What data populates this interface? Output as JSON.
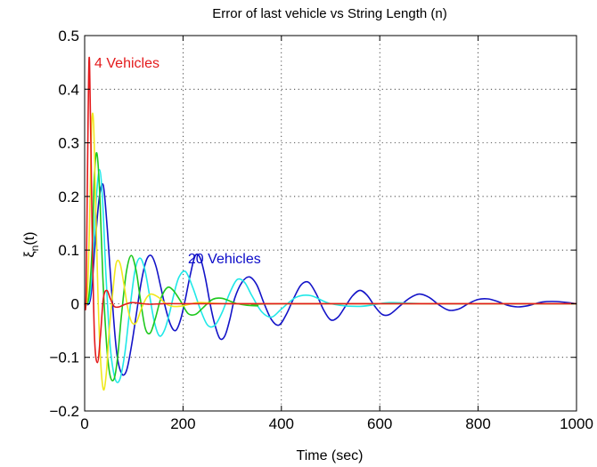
{
  "chart_data": {
    "type": "line",
    "title": "Error of last vehicle vs String Length (n)",
    "xlabel": "Time (sec)",
    "ylabel_base": "ξ",
    "ylabel_sub": "n",
    "ylabel_tail": "(t)",
    "xlim": [
      0,
      1000
    ],
    "ylim": [
      -0.2,
      0.5
    ],
    "xticks": [
      0,
      200,
      400,
      600,
      800,
      1000
    ],
    "xtick_labels": [
      "0",
      "200",
      "400",
      "600",
      "800",
      "1000"
    ],
    "yticks": [
      -0.2,
      -0.1,
      0,
      0.1,
      0.2,
      0.3,
      0.4,
      0.5
    ],
    "ytick_labels": [
      "−0.2",
      "−0.1",
      "0",
      "0.1",
      "0.2",
      "0.3",
      "0.4",
      "0.5"
    ],
    "grid": true,
    "annotations": [
      {
        "text": "4 Vehicles",
        "x": 20,
        "y": 0.45,
        "color": "#e41a1c"
      },
      {
        "text": "20 Vehicles",
        "x": 210,
        "y": 0.085,
        "color": "#0a0ac8"
      }
    ],
    "series": [
      {
        "color": "#e41a1c",
        "x": [
          0,
          3,
          7,
          10,
          15,
          20,
          26,
          32,
          38,
          45,
          52,
          60,
          70,
          80,
          95,
          110,
          130,
          160,
          200,
          300,
          1000
        ],
        "y": [
          0,
          0.02,
          0.35,
          0.45,
          0.15,
          -0.06,
          -0.11,
          -0.06,
          0.01,
          0.025,
          0.01,
          -0.005,
          -0.006,
          -0.002,
          0.002,
          0.001,
          -0.001,
          0,
          0,
          0,
          0
        ]
      },
      {
        "color": "#f0e81e",
        "x": [
          0,
          5,
          10,
          14,
          18,
          22,
          27,
          32,
          38,
          44,
          50,
          57,
          64,
          72,
          80,
          88,
          96,
          105,
          115,
          125,
          135,
          150,
          165,
          180,
          200,
          230,
          260,
          300,
          400,
          1000
        ],
        "y": [
          0,
          0.01,
          0.15,
          0.33,
          0.34,
          0.2,
          0.02,
          -0.1,
          -0.16,
          -0.13,
          -0.05,
          0.02,
          0.075,
          0.075,
          0.035,
          -0.01,
          -0.035,
          -0.035,
          -0.01,
          0.01,
          0.018,
          0.012,
          0,
          -0.005,
          -0.004,
          0.002,
          0.001,
          0,
          0,
          0
        ]
      },
      {
        "color": "#1ec81e",
        "x": [
          0,
          8,
          15,
          20,
          25,
          31,
          37,
          45,
          52,
          60,
          67,
          75,
          85,
          95,
          105,
          113,
          123,
          133,
          143,
          155,
          168,
          180,
          195,
          210,
          225,
          240,
          260,
          280,
          310,
          350,
          400,
          1000
        ],
        "y": [
          0,
          0.01,
          0.1,
          0.24,
          0.28,
          0.2,
          0.05,
          -0.08,
          -0.135,
          -0.14,
          -0.1,
          -0.02,
          0.06,
          0.09,
          0.06,
          0.01,
          -0.045,
          -0.055,
          -0.03,
          0.01,
          0.03,
          0.025,
          0.005,
          -0.018,
          -0.02,
          -0.008,
          0.008,
          0.01,
          0,
          -0.004,
          0,
          0
        ]
      },
      {
        "color": "#20e8e8",
        "x": [
          0,
          10,
          18,
          24,
          30,
          36,
          43,
          52,
          62,
          72,
          82,
          92,
          102,
          112,
          122,
          132,
          142,
          152,
          162,
          172,
          182,
          192,
          205,
          220,
          235,
          250,
          265,
          280,
          295,
          310,
          325,
          340,
          360,
          380,
          400,
          430,
          460,
          500,
          560,
          620,
          700,
          1000
        ],
        "y": [
          0,
          0.01,
          0.1,
          0.2,
          0.25,
          0.2,
          0.06,
          -0.08,
          -0.14,
          -0.14,
          -0.09,
          -0.01,
          0.06,
          0.085,
          0.065,
          0.015,
          -0.035,
          -0.06,
          -0.05,
          -0.02,
          0.02,
          0.05,
          0.06,
          0.03,
          -0.01,
          -0.04,
          -0.04,
          -0.015,
          0.02,
          0.045,
          0.04,
          0.015,
          -0.015,
          -0.025,
          -0.01,
          0.012,
          0.015,
          0,
          -0.005,
          0.002,
          0,
          0
        ]
      },
      {
        "color": "#1414c8",
        "x": [
          0,
          12,
          22,
          30,
          38,
          46,
          55,
          65,
          75,
          85,
          95,
          105,
          115,
          125,
          135,
          145,
          155,
          165,
          175,
          185,
          195,
          205,
          215,
          225,
          235,
          245,
          255,
          265,
          275,
          285,
          295,
          305,
          320,
          335,
          350,
          365,
          380,
          395,
          410,
          425,
          440,
          455,
          470,
          485,
          500,
          515,
          530,
          545,
          560,
          575,
          590,
          605,
          620,
          640,
          660,
          680,
          700,
          720,
          740,
          760,
          780,
          800,
          820,
          840,
          860,
          880,
          900,
          930,
          960,
          1000
        ],
        "y": [
          0,
          0.01,
          0.12,
          0.2,
          0.22,
          0.14,
          0.02,
          -0.09,
          -0.13,
          -0.125,
          -0.08,
          -0.02,
          0.04,
          0.08,
          0.09,
          0.07,
          0.03,
          -0.01,
          -0.04,
          -0.05,
          -0.03,
          0.01,
          0.055,
          0.09,
          0.085,
          0.05,
          0.0,
          -0.04,
          -0.065,
          -0.06,
          -0.03,
          0.01,
          0.04,
          0.05,
          0.035,
          0.0,
          -0.03,
          -0.04,
          -0.02,
          0.01,
          0.035,
          0.04,
          0.02,
          -0.01,
          -0.03,
          -0.025,
          -0.005,
          0.015,
          0.025,
          0.015,
          -0.005,
          -0.02,
          -0.02,
          -0.005,
          0.01,
          0.018,
          0.012,
          -0.002,
          -0.012,
          -0.01,
          0,
          0.008,
          0.009,
          0.004,
          -0.003,
          -0.006,
          -0.004,
          0.003,
          0.004,
          0
        ]
      }
    ]
  }
}
